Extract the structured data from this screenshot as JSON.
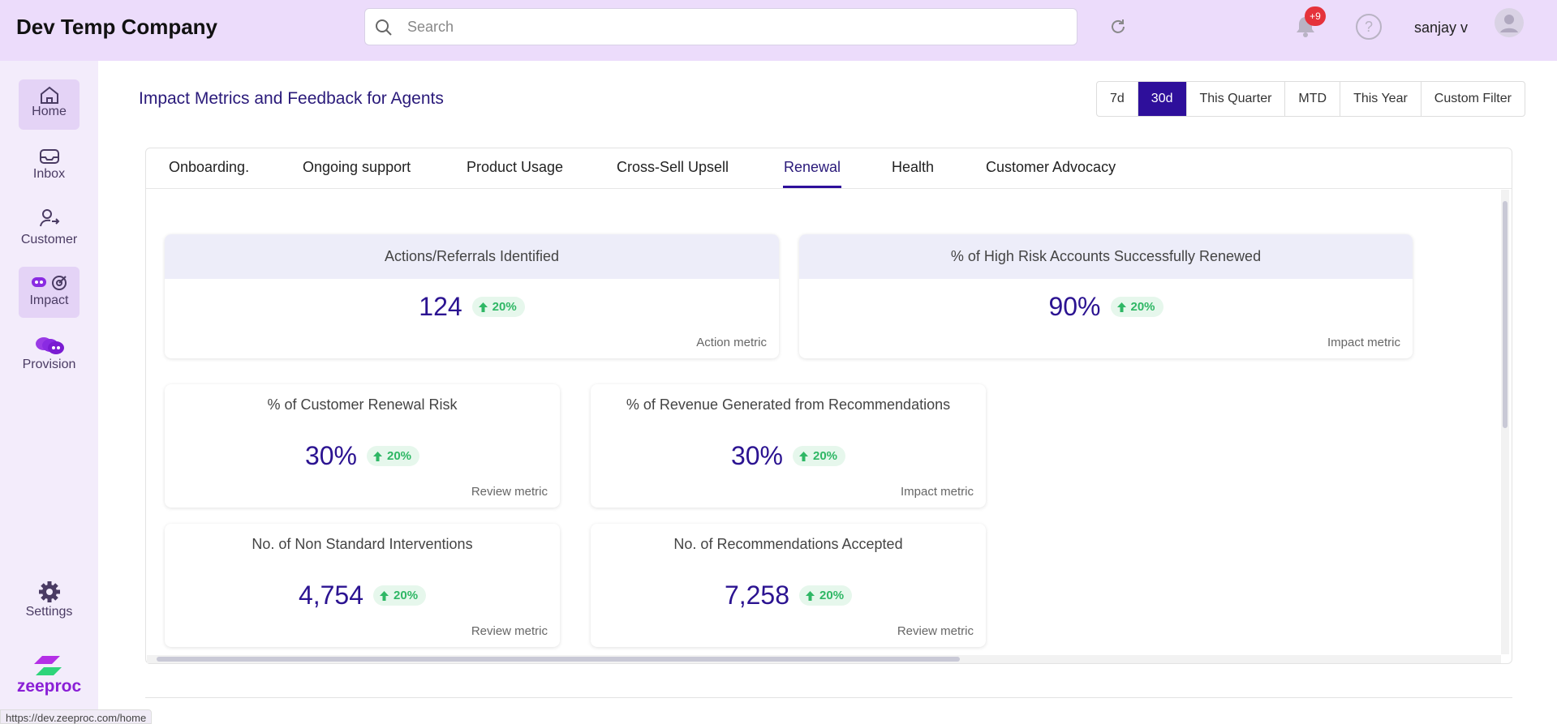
{
  "header": {
    "company": "Dev Temp Company",
    "search_placeholder": "Search",
    "notification_badge": "+9",
    "user": "sanjay v"
  },
  "sidebar": {
    "items": [
      "Home",
      "Inbox",
      "Customer",
      "Impact",
      "Provision"
    ],
    "settings": "Settings",
    "logo": "zeeproc"
  },
  "page": {
    "title": "Impact Metrics and Feedback for Agents"
  },
  "filters": [
    "7d",
    "30d",
    "This Quarter",
    "MTD",
    "This Year",
    "Custom Filter"
  ],
  "tabs": [
    "Onboarding.",
    "Ongoing support",
    "Product Usage",
    "Cross-Sell Upsell",
    "Renewal",
    "Health",
    "Customer Advocacy"
  ],
  "metrics": [
    {
      "title": "Actions/Referrals Identified",
      "value": "124",
      "change": "20%",
      "type": "Action metric"
    },
    {
      "title": "% of High Risk Accounts Successfully Renewed",
      "value": "90%",
      "change": "20%",
      "type": "Impact metric"
    },
    {
      "title": "% of Customer Renewal Risk",
      "value": "30%",
      "change": "20%",
      "type": "Review metric"
    },
    {
      "title": "% of Revenue Generated from Recommendations",
      "value": "30%",
      "change": "20%",
      "type": "Impact metric"
    },
    {
      "title": "No. of Non Standard Interventions",
      "value": "4,754",
      "change": "20%",
      "type": "Review metric"
    },
    {
      "title": "No. of Recommendations Accepted",
      "value": "7,258",
      "change": "20%",
      "type": "Review metric"
    }
  ],
  "status_bar": "https://dev.zeeproc.com/home"
}
